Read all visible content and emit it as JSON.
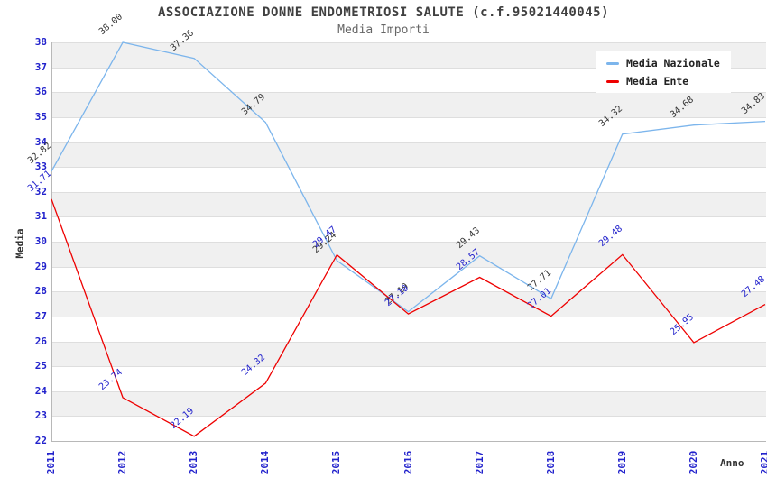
{
  "header": {
    "title": "ASSOCIAZIONE DONNE ENDOMETRIOSI SALUTE (c.f.95021440045)",
    "subtitle": "Media Importi"
  },
  "legend": {
    "items": [
      {
        "label": "Media Nazionale",
        "color": "#7cb5ec"
      },
      {
        "label": "Media Ente",
        "color": "#ee0000"
      }
    ]
  },
  "axes": {
    "y_title": "Media",
    "x_title": "Anno",
    "tick_color": "#2222cc"
  },
  "chart_data": {
    "type": "line",
    "title": "ASSOCIAZIONE DONNE ENDOMETRIOSI SALUTE (c.f.95021440045)",
    "subtitle": "Media Importi",
    "xlabel": "Anno",
    "ylabel": "Media",
    "x": [
      "2011",
      "2012",
      "2013",
      "2014",
      "2015",
      "2016",
      "2017",
      "2018",
      "2019",
      "2020",
      "2021"
    ],
    "ylim": [
      22,
      38
    ],
    "y_ticks": [
      "38",
      "37",
      "36",
      "35",
      "34",
      "33",
      "32",
      "31",
      "30",
      "29",
      "28",
      "27",
      "26",
      "25",
      "24",
      "23",
      "22"
    ],
    "grid": "alternating horizontal bands, gray #f0f0f0 / white, line #dedede",
    "legend_position": "top-right inset",
    "series": [
      {
        "name": "Media Nazionale",
        "color": "#7cb5ec",
        "label_color": "#333333",
        "values": [
          32.82,
          38.0,
          37.36,
          34.79,
          29.24,
          27.19,
          29.43,
          27.71,
          34.32,
          34.68,
          34.83
        ],
        "value_labels": [
          "32.82",
          "38.00",
          "37.36",
          "34.79",
          "29.24",
          "27.19",
          "29.43",
          "27.71",
          "34.32",
          "34.68",
          "34.83"
        ]
      },
      {
        "name": "Media Ente",
        "color": "#ee0000",
        "label_color": "#2222cc",
        "values": [
          31.71,
          23.74,
          22.19,
          24.32,
          29.47,
          27.1,
          28.57,
          27.01,
          29.48,
          25.95,
          27.48
        ],
        "value_labels": [
          "31.71",
          "23.74",
          "22.19",
          "24.32",
          "29.47",
          "27.10",
          "28.57",
          "27.01",
          "29.48",
          "25.95",
          "27.48"
        ]
      }
    ]
  }
}
